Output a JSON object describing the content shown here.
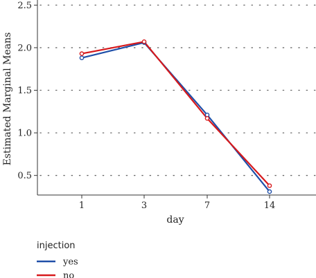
{
  "chart_data": {
    "type": "line",
    "xlabel": "day",
    "ylabel": "Estimated Marginal Means",
    "categories": [
      "1",
      "3",
      "7",
      "14"
    ],
    "ylim": [
      0.27,
      2.56
    ],
    "yticks": [
      "0.5",
      "1.0",
      "1.5",
      "2.0",
      "2.5"
    ],
    "ytick_values": [
      0.5,
      1.0,
      1.5,
      2.0,
      2.5
    ],
    "grid": "horizontal dotted",
    "legend": {
      "title": "injection",
      "placement": "bottom-left",
      "entries": [
        {
          "name": "yes",
          "color": "#1f4fa8"
        },
        {
          "name": "no",
          "color": "#d7191c"
        }
      ]
    },
    "series": [
      {
        "name": "yes",
        "color": "#1f4fa8",
        "values": [
          1.88,
          2.06,
          1.21,
          0.31
        ]
      },
      {
        "name": "no",
        "color": "#d7191c",
        "values": [
          1.93,
          2.07,
          1.17,
          0.38
        ]
      }
    ]
  }
}
